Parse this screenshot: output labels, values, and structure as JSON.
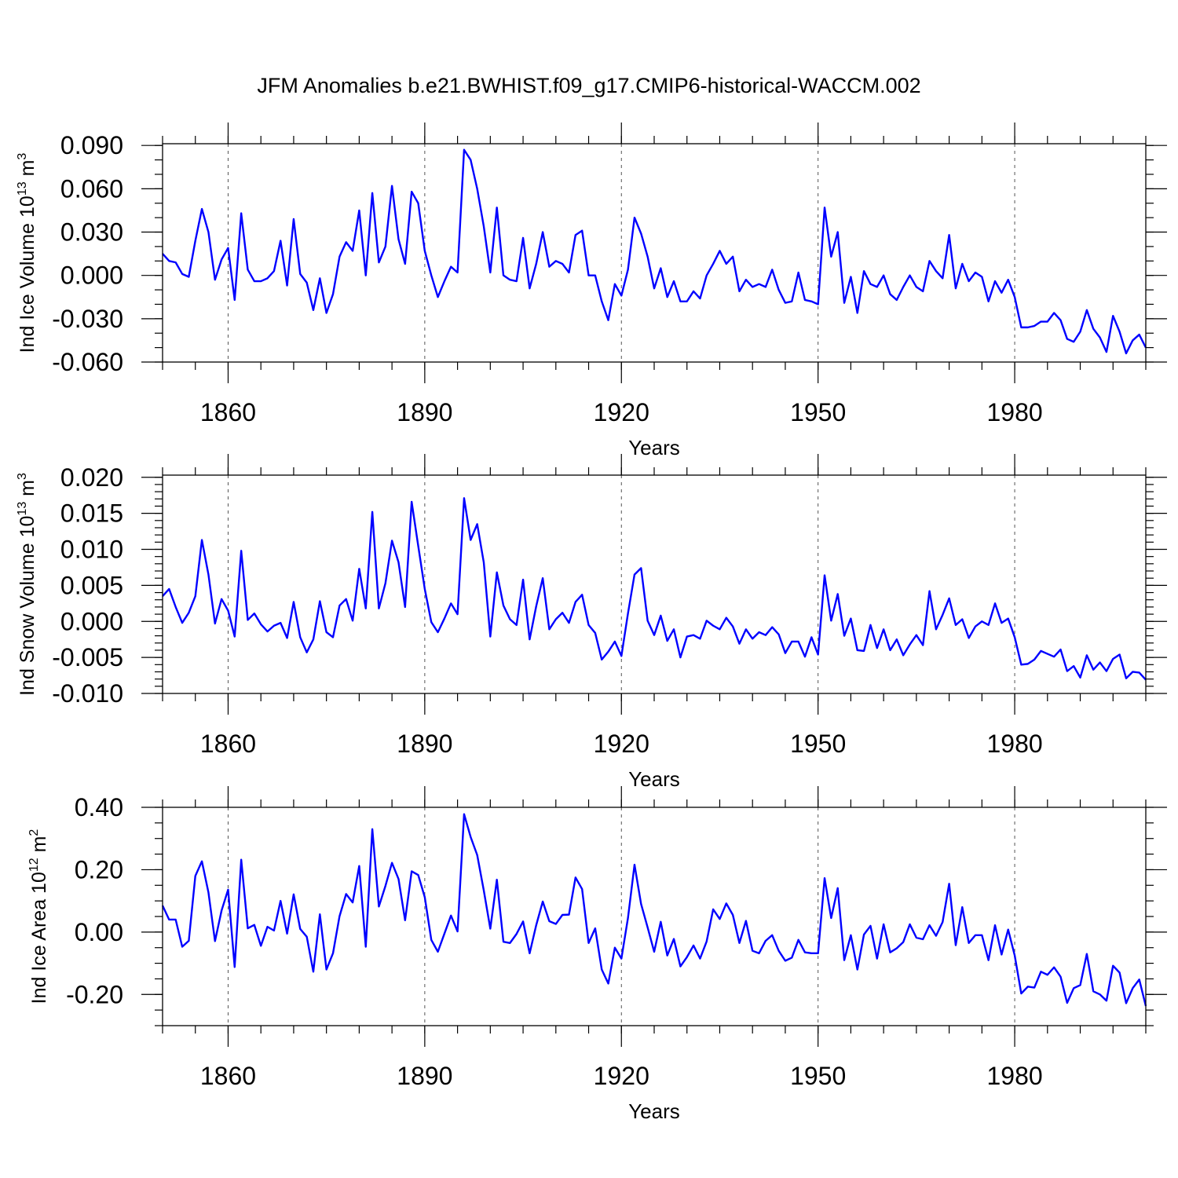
{
  "title": "JFM Anomalies b.e21.BWHIST.f09_g17.CMIP6-historical-WACCM.002",
  "chart_data": [
    {
      "type": "line",
      "ylabel_main": "Ind Ice Volume 10",
      "ylabel_exp": "13",
      "ylabel_unit": " m",
      "ylabel_unit_exp": "3",
      "xlabel": "Years",
      "xlim": [
        1850,
        2000
      ],
      "xticks": [
        1860,
        1890,
        1920,
        1950,
        1980
      ],
      "xtick_labels": [
        "1860",
        "1890",
        "1920",
        "1950",
        "1980"
      ],
      "ylim": [
        -0.06,
        0.0912
      ],
      "yticks": [
        -0.06,
        -0.03,
        0.0,
        0.03,
        0.06,
        0.09
      ],
      "ytick_labels": [
        "-0.060",
        "-0.030",
        "0.000",
        "0.030",
        "0.060",
        "0.090"
      ],
      "yminor": 0.01,
      "series": [
        {
          "name": "Ind Ice Volume",
          "x_start": 1850,
          "values": [
            0.015,
            0.01,
            0.009,
            0.001,
            -0.001,
            0.024,
            0.046,
            0.03,
            -0.003,
            0.011,
            0.019,
            -0.017,
            0.043,
            0.004,
            -0.004,
            -0.004,
            -0.002,
            0.003,
            0.024,
            -0.007,
            0.039,
            0.001,
            -0.005,
            -0.024,
            -0.002,
            -0.026,
            -0.013,
            0.013,
            0.023,
            0.017,
            0.045,
            0.0,
            0.057,
            0.009,
            0.02,
            0.062,
            0.025,
            0.008,
            0.058,
            0.05,
            0.017,
            0.0,
            -0.015,
            -0.004,
            0.006,
            0.002,
            0.087,
            0.08,
            0.06,
            0.034,
            0.002,
            0.047,
            0.0,
            -0.003,
            -0.004,
            0.026,
            -0.009,
            0.008,
            0.03,
            0.006,
            0.01,
            0.008,
            0.002,
            0.028,
            0.031,
            0.0,
            0.0,
            -0.018,
            -0.031,
            -0.006,
            -0.014,
            0.004,
            0.04,
            0.029,
            0.013,
            -0.009,
            0.005,
            -0.015,
            -0.004,
            -0.018,
            -0.018,
            -0.011,
            -0.016,
            0.0,
            0.008,
            0.017,
            0.008,
            0.013,
            -0.011,
            -0.003,
            -0.008,
            -0.006,
            -0.008,
            0.004,
            -0.01,
            -0.019,
            -0.018,
            0.002,
            -0.017,
            -0.018,
            -0.02,
            0.047,
            0.013,
            0.03,
            -0.019,
            -0.001,
            -0.026,
            0.003,
            -0.006,
            -0.008,
            0.0,
            -0.013,
            -0.017,
            -0.008,
            0.0,
            -0.008,
            -0.011,
            0.01,
            0.003,
            -0.002,
            0.028,
            -0.009,
            0.008,
            -0.004,
            0.002,
            -0.001,
            -0.018,
            -0.004,
            -0.012,
            -0.003,
            -0.015,
            -0.036,
            -0.036,
            -0.035,
            -0.032,
            -0.032,
            -0.026,
            -0.031,
            -0.044,
            -0.046,
            -0.039,
            -0.024,
            -0.037,
            -0.043,
            -0.053,
            -0.028,
            -0.039,
            -0.054,
            -0.045,
            -0.041,
            -0.05
          ]
        }
      ]
    },
    {
      "type": "line",
      "ylabel_main": "Ind Snow Volume 10",
      "ylabel_exp": "13",
      "ylabel_unit": " m",
      "ylabel_unit_exp": "3",
      "xlabel": "Years",
      "xlim": [
        1850,
        2000
      ],
      "xticks": [
        1860,
        1890,
        1920,
        1950,
        1980
      ],
      "xtick_labels": [
        "1860",
        "1890",
        "1920",
        "1950",
        "1980"
      ],
      "ylim": [
        -0.01,
        0.0203
      ],
      "yticks": [
        -0.01,
        -0.005,
        0.0,
        0.005,
        0.01,
        0.015,
        0.02
      ],
      "ytick_labels": [
        "-0.010",
        "-0.005",
        "0.000",
        "0.005",
        "0.010",
        "0.015",
        "0.020"
      ],
      "yminor": 0.001,
      "series": [
        {
          "name": "Ind Snow Volume",
          "x_start": 1850,
          "values": [
            0.0035,
            0.0045,
            0.002,
            -0.0002,
            0.0012,
            0.0035,
            0.0113,
            0.0065,
            -0.0003,
            0.0031,
            0.0015,
            -0.0021,
            0.0098,
            0.0002,
            0.0011,
            -0.0004,
            -0.0014,
            -0.0006,
            -0.0002,
            -0.0023,
            0.0027,
            -0.0022,
            -0.0043,
            -0.0025,
            0.0028,
            -0.0015,
            -0.0022,
            0.0022,
            0.0031,
            0.0001,
            0.0073,
            0.0018,
            0.0152,
            0.0018,
            0.0053,
            0.0112,
            0.0082,
            0.002,
            0.0166,
            0.0105,
            0.0045,
            -0.0001,
            -0.0015,
            0.0004,
            0.0025,
            0.001,
            0.0171,
            0.0113,
            0.0135,
            0.0082,
            -0.0021,
            0.0068,
            0.0022,
            0.0003,
            -0.0005,
            0.0058,
            -0.0025,
            0.0021,
            0.006,
            -0.0011,
            0.0003,
            0.0012,
            -0.0002,
            0.0027,
            0.0037,
            -0.0005,
            -0.0016,
            -0.0053,
            -0.0042,
            -0.0028,
            -0.0048,
            0.0011,
            0.0065,
            0.0074,
            0.0001,
            -0.0019,
            0.0008,
            -0.0027,
            -0.0011,
            -0.005,
            -0.0021,
            -0.0019,
            -0.0024,
            0.0001,
            -0.0006,
            -0.0011,
            0.0005,
            -0.0007,
            -0.0031,
            -0.0011,
            -0.0024,
            -0.0015,
            -0.0019,
            -0.0008,
            -0.0018,
            -0.0044,
            -0.0028,
            -0.0028,
            -0.0049,
            -0.0022,
            -0.0046,
            0.0064,
            0.0001,
            0.0038,
            -0.002,
            0.0004,
            -0.004,
            -0.0041,
            -0.0005,
            -0.0037,
            -0.0011,
            -0.004,
            -0.0025,
            -0.0047,
            -0.0032,
            -0.0019,
            -0.0033,
            0.0042,
            -0.0011,
            0.0009,
            0.0032,
            -0.0005,
            0.0003,
            -0.0023,
            -0.0007,
            0.0,
            -0.0005,
            0.0025,
            -0.0002,
            0.0004,
            -0.0022,
            -0.006,
            -0.0059,
            -0.0053,
            -0.0041,
            -0.0045,
            -0.0049,
            -0.0039,
            -0.0069,
            -0.0062,
            -0.0078,
            -0.0047,
            -0.0067,
            -0.0057,
            -0.0069,
            -0.0052,
            -0.0046,
            -0.0079,
            -0.007,
            -0.0071,
            -0.0081
          ]
        }
      ]
    },
    {
      "type": "line",
      "ylabel_main": "Ind Ice Area 10",
      "ylabel_exp": "12",
      "ylabel_unit": " m",
      "ylabel_unit_exp": "2",
      "xlabel": "Years",
      "xlim": [
        1850,
        2000
      ],
      "xticks": [
        1860,
        1890,
        1920,
        1950,
        1980
      ],
      "xtick_labels": [
        "1860",
        "1890",
        "1920",
        "1950",
        "1980"
      ],
      "ylim": [
        -0.3,
        0.4
      ],
      "yticks": [
        -0.2,
        0.0,
        0.2,
        0.4
      ],
      "ytick_labels": [
        "-0.20",
        "0.00",
        "0.20",
        "0.40"
      ],
      "yminor": 0.05,
      "series": [
        {
          "name": "Ind Ice Area",
          "x_start": 1850,
          "values": [
            0.085,
            0.04,
            0.04,
            -0.047,
            -0.028,
            0.18,
            0.227,
            0.127,
            -0.029,
            0.069,
            0.136,
            -0.112,
            0.232,
            0.012,
            0.023,
            -0.044,
            0.017,
            0.005,
            0.1,
            -0.005,
            0.121,
            0.01,
            -0.015,
            -0.127,
            0.057,
            -0.12,
            -0.068,
            0.051,
            0.122,
            0.095,
            0.212,
            -0.047,
            0.33,
            0.082,
            0.148,
            0.222,
            0.17,
            0.038,
            0.195,
            0.183,
            0.112,
            -0.025,
            -0.063,
            -0.005,
            0.053,
            0.002,
            0.378,
            0.305,
            0.247,
            0.134,
            0.011,
            0.168,
            -0.031,
            -0.035,
            -0.006,
            0.034,
            -0.068,
            0.022,
            0.098,
            0.035,
            0.026,
            0.055,
            0.056,
            0.175,
            0.138,
            -0.035,
            0.012,
            -0.12,
            -0.165,
            -0.05,
            -0.085,
            0.045,
            0.216,
            0.09,
            0.015,
            -0.063,
            0.033,
            -0.075,
            -0.022,
            -0.11,
            -0.08,
            -0.043,
            -0.085,
            -0.03,
            0.073,
            0.042,
            0.092,
            0.055,
            -0.035,
            0.036,
            -0.06,
            -0.068,
            -0.028,
            -0.01,
            -0.06,
            -0.092,
            -0.082,
            -0.025,
            -0.065,
            -0.068,
            -0.068,
            0.173,
            0.045,
            0.141,
            -0.09,
            -0.01,
            -0.12,
            -0.008,
            0.02,
            -0.085,
            0.025,
            -0.065,
            -0.052,
            -0.032,
            0.025,
            -0.018,
            -0.023,
            0.022,
            -0.012,
            0.032,
            0.155,
            -0.042,
            0.08,
            -0.035,
            -0.01,
            -0.01,
            -0.09,
            0.022,
            -0.072,
            0.008,
            -0.075,
            -0.197,
            -0.175,
            -0.178,
            -0.127,
            -0.137,
            -0.113,
            -0.143,
            -0.227,
            -0.18,
            -0.17,
            -0.07,
            -0.19,
            -0.2,
            -0.22,
            -0.108,
            -0.13,
            -0.228,
            -0.18,
            -0.152,
            -0.237
          ]
        }
      ]
    }
  ]
}
